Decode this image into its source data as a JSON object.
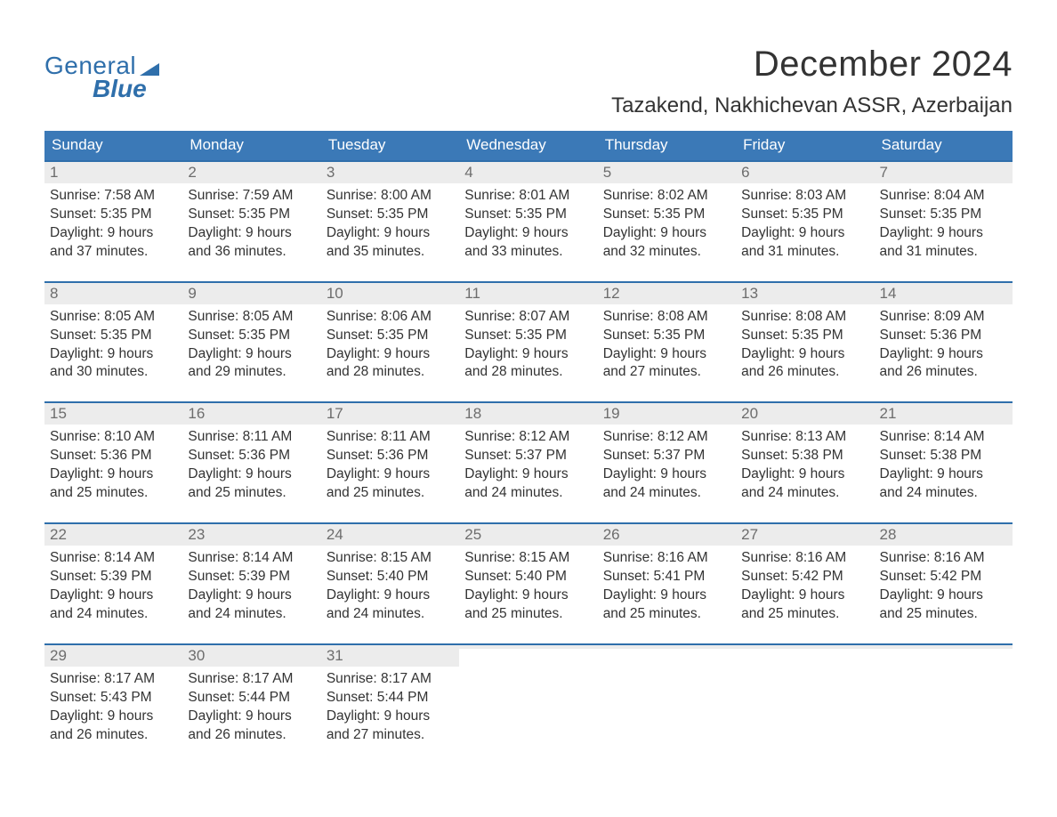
{
  "logo": {
    "word1": "General",
    "word2": "Blue"
  },
  "title": "December 2024",
  "location": "Tazakend, Nakhichevan ASSR, Azerbaijan",
  "colors": {
    "accent": "#2f6fab",
    "header_bg": "#3b79b7",
    "header_text": "#ffffff",
    "daynum_bg": "#ececec",
    "daynum_text": "#6d6d6d",
    "body_text": "#333333",
    "background": "#ffffff"
  },
  "weekdays": [
    "Sunday",
    "Monday",
    "Tuesday",
    "Wednesday",
    "Thursday",
    "Friday",
    "Saturday"
  ],
  "weeks": [
    [
      {
        "n": "1",
        "sunrise": "Sunrise: 7:58 AM",
        "sunset": "Sunset: 5:35 PM",
        "day1": "Daylight: 9 hours",
        "day2": "and 37 minutes."
      },
      {
        "n": "2",
        "sunrise": "Sunrise: 7:59 AM",
        "sunset": "Sunset: 5:35 PM",
        "day1": "Daylight: 9 hours",
        "day2": "and 36 minutes."
      },
      {
        "n": "3",
        "sunrise": "Sunrise: 8:00 AM",
        "sunset": "Sunset: 5:35 PM",
        "day1": "Daylight: 9 hours",
        "day2": "and 35 minutes."
      },
      {
        "n": "4",
        "sunrise": "Sunrise: 8:01 AM",
        "sunset": "Sunset: 5:35 PM",
        "day1": "Daylight: 9 hours",
        "day2": "and 33 minutes."
      },
      {
        "n": "5",
        "sunrise": "Sunrise: 8:02 AM",
        "sunset": "Sunset: 5:35 PM",
        "day1": "Daylight: 9 hours",
        "day2": "and 32 minutes."
      },
      {
        "n": "6",
        "sunrise": "Sunrise: 8:03 AM",
        "sunset": "Sunset: 5:35 PM",
        "day1": "Daylight: 9 hours",
        "day2": "and 31 minutes."
      },
      {
        "n": "7",
        "sunrise": "Sunrise: 8:04 AM",
        "sunset": "Sunset: 5:35 PM",
        "day1": "Daylight: 9 hours",
        "day2": "and 31 minutes."
      }
    ],
    [
      {
        "n": "8",
        "sunrise": "Sunrise: 8:05 AM",
        "sunset": "Sunset: 5:35 PM",
        "day1": "Daylight: 9 hours",
        "day2": "and 30 minutes."
      },
      {
        "n": "9",
        "sunrise": "Sunrise: 8:05 AM",
        "sunset": "Sunset: 5:35 PM",
        "day1": "Daylight: 9 hours",
        "day2": "and 29 minutes."
      },
      {
        "n": "10",
        "sunrise": "Sunrise: 8:06 AM",
        "sunset": "Sunset: 5:35 PM",
        "day1": "Daylight: 9 hours",
        "day2": "and 28 minutes."
      },
      {
        "n": "11",
        "sunrise": "Sunrise: 8:07 AM",
        "sunset": "Sunset: 5:35 PM",
        "day1": "Daylight: 9 hours",
        "day2": "and 28 minutes."
      },
      {
        "n": "12",
        "sunrise": "Sunrise: 8:08 AM",
        "sunset": "Sunset: 5:35 PM",
        "day1": "Daylight: 9 hours",
        "day2": "and 27 minutes."
      },
      {
        "n": "13",
        "sunrise": "Sunrise: 8:08 AM",
        "sunset": "Sunset: 5:35 PM",
        "day1": "Daylight: 9 hours",
        "day2": "and 26 minutes."
      },
      {
        "n": "14",
        "sunrise": "Sunrise: 8:09 AM",
        "sunset": "Sunset: 5:36 PM",
        "day1": "Daylight: 9 hours",
        "day2": "and 26 minutes."
      }
    ],
    [
      {
        "n": "15",
        "sunrise": "Sunrise: 8:10 AM",
        "sunset": "Sunset: 5:36 PM",
        "day1": "Daylight: 9 hours",
        "day2": "and 25 minutes."
      },
      {
        "n": "16",
        "sunrise": "Sunrise: 8:11 AM",
        "sunset": "Sunset: 5:36 PM",
        "day1": "Daylight: 9 hours",
        "day2": "and 25 minutes."
      },
      {
        "n": "17",
        "sunrise": "Sunrise: 8:11 AM",
        "sunset": "Sunset: 5:36 PM",
        "day1": "Daylight: 9 hours",
        "day2": "and 25 minutes."
      },
      {
        "n": "18",
        "sunrise": "Sunrise: 8:12 AM",
        "sunset": "Sunset: 5:37 PM",
        "day1": "Daylight: 9 hours",
        "day2": "and 24 minutes."
      },
      {
        "n": "19",
        "sunrise": "Sunrise: 8:12 AM",
        "sunset": "Sunset: 5:37 PM",
        "day1": "Daylight: 9 hours",
        "day2": "and 24 minutes."
      },
      {
        "n": "20",
        "sunrise": "Sunrise: 8:13 AM",
        "sunset": "Sunset: 5:38 PM",
        "day1": "Daylight: 9 hours",
        "day2": "and 24 minutes."
      },
      {
        "n": "21",
        "sunrise": "Sunrise: 8:14 AM",
        "sunset": "Sunset: 5:38 PM",
        "day1": "Daylight: 9 hours",
        "day2": "and 24 minutes."
      }
    ],
    [
      {
        "n": "22",
        "sunrise": "Sunrise: 8:14 AM",
        "sunset": "Sunset: 5:39 PM",
        "day1": "Daylight: 9 hours",
        "day2": "and 24 minutes."
      },
      {
        "n": "23",
        "sunrise": "Sunrise: 8:14 AM",
        "sunset": "Sunset: 5:39 PM",
        "day1": "Daylight: 9 hours",
        "day2": "and 24 minutes."
      },
      {
        "n": "24",
        "sunrise": "Sunrise: 8:15 AM",
        "sunset": "Sunset: 5:40 PM",
        "day1": "Daylight: 9 hours",
        "day2": "and 24 minutes."
      },
      {
        "n": "25",
        "sunrise": "Sunrise: 8:15 AM",
        "sunset": "Sunset: 5:40 PM",
        "day1": "Daylight: 9 hours",
        "day2": "and 25 minutes."
      },
      {
        "n": "26",
        "sunrise": "Sunrise: 8:16 AM",
        "sunset": "Sunset: 5:41 PM",
        "day1": "Daylight: 9 hours",
        "day2": "and 25 minutes."
      },
      {
        "n": "27",
        "sunrise": "Sunrise: 8:16 AM",
        "sunset": "Sunset: 5:42 PM",
        "day1": "Daylight: 9 hours",
        "day2": "and 25 minutes."
      },
      {
        "n": "28",
        "sunrise": "Sunrise: 8:16 AM",
        "sunset": "Sunset: 5:42 PM",
        "day1": "Daylight: 9 hours",
        "day2": "and 25 minutes."
      }
    ],
    [
      {
        "n": "29",
        "sunrise": "Sunrise: 8:17 AM",
        "sunset": "Sunset: 5:43 PM",
        "day1": "Daylight: 9 hours",
        "day2": "and 26 minutes."
      },
      {
        "n": "30",
        "sunrise": "Sunrise: 8:17 AM",
        "sunset": "Sunset: 5:44 PM",
        "day1": "Daylight: 9 hours",
        "day2": "and 26 minutes."
      },
      {
        "n": "31",
        "sunrise": "Sunrise: 8:17 AM",
        "sunset": "Sunset: 5:44 PM",
        "day1": "Daylight: 9 hours",
        "day2": "and 27 minutes."
      },
      {
        "empty": true
      },
      {
        "empty": true
      },
      {
        "empty": true
      },
      {
        "empty": true
      }
    ]
  ]
}
